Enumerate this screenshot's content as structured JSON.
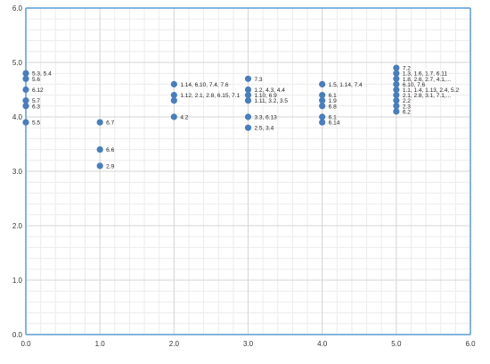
{
  "chart_data": {
    "type": "scatter",
    "xlim": [
      0.0,
      6.0
    ],
    "ylim": [
      0.0,
      6.0
    ],
    "x_ticks": [
      "0.0",
      "1.0",
      "2.0",
      "3.0",
      "4.0",
      "5.0",
      "6.0"
    ],
    "y_ticks": [
      "0.0",
      "1.0",
      "2.0",
      "3.0",
      "4.0",
      "5.0",
      "6.0"
    ],
    "grid": "major and minor",
    "marker_color": "#4a7ebb",
    "points": [
      {
        "x": 0.0,
        "y": 4.8,
        "label": "5.3, 5.4"
      },
      {
        "x": 0.0,
        "y": 4.7,
        "label": "5.6"
      },
      {
        "x": 0.0,
        "y": 4.5,
        "label": "6.12"
      },
      {
        "x": 0.0,
        "y": 4.3,
        "label": "5.7"
      },
      {
        "x": 0.0,
        "y": 4.2,
        "label": "6.3"
      },
      {
        "x": 0.0,
        "y": 3.9,
        "label": "5.5"
      },
      {
        "x": 1.0,
        "y": 3.9,
        "label": "6.7"
      },
      {
        "x": 1.0,
        "y": 3.4,
        "label": "6.6"
      },
      {
        "x": 1.0,
        "y": 3.1,
        "label": "2.9"
      },
      {
        "x": 2.0,
        "y": 4.6,
        "label": "1.14, 6.10, 7.4, 7.6"
      },
      {
        "x": 2.0,
        "y": 4.4,
        "label": "1.12, 2.1, 2.8, 6.15, 7.1"
      },
      {
        "x": 2.0,
        "y": 4.3,
        "label": ""
      },
      {
        "x": 2.0,
        "y": 4.0,
        "label": "4.2"
      },
      {
        "x": 3.0,
        "y": 4.7,
        "label": "7.3"
      },
      {
        "x": 3.0,
        "y": 4.5,
        "label": "1.2, 4.3, 4.4"
      },
      {
        "x": 3.0,
        "y": 4.4,
        "label": "1.10, 6.9"
      },
      {
        "x": 3.0,
        "y": 4.3,
        "label": "1.11, 3.2, 3.5"
      },
      {
        "x": 3.0,
        "y": 4.0,
        "label": "3.3, 6.13"
      },
      {
        "x": 3.0,
        "y": 3.8,
        "label": "2.5, 3.4"
      },
      {
        "x": 4.0,
        "y": 4.6,
        "label": "1.5, 1.14, 7.4"
      },
      {
        "x": 4.0,
        "y": 4.4,
        "label": "6.1"
      },
      {
        "x": 4.0,
        "y": 4.3,
        "label": "1.9"
      },
      {
        "x": 4.0,
        "y": 4.2,
        "label": "6.8"
      },
      {
        "x": 4.0,
        "y": 4.0,
        "label": "6.1"
      },
      {
        "x": 4.0,
        "y": 3.9,
        "label": "6.14"
      },
      {
        "x": 5.0,
        "y": 4.9,
        "label": "7.2"
      },
      {
        "x": 5.0,
        "y": 4.8,
        "label": "1.3, 1.6, 1.7, 6.11"
      },
      {
        "x": 5.0,
        "y": 4.7,
        "label": "1.8, 2.6, 2.7, 4.1,..."
      },
      {
        "x": 5.0,
        "y": 4.6,
        "label": "6.10, 7.6"
      },
      {
        "x": 5.0,
        "y": 4.5,
        "label": "1.1, 1.4, 1.13, 2.4, 5.2"
      },
      {
        "x": 5.0,
        "y": 4.4,
        "label": "2.1, 2.8, 3.1, 7.1,..."
      },
      {
        "x": 5.0,
        "y": 4.3,
        "label": "2.2"
      },
      {
        "x": 5.0,
        "y": 4.2,
        "label": "2.3"
      },
      {
        "x": 5.0,
        "y": 4.1,
        "label": "6.2"
      }
    ]
  }
}
